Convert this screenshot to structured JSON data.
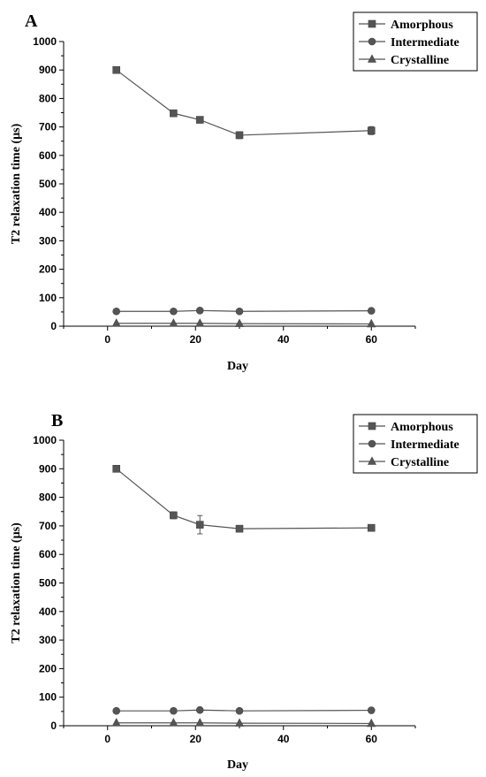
{
  "chart_data": [
    {
      "panel": "A",
      "type": "line",
      "xlabel": "Day",
      "ylabel": "T2 relaxation time (µs)",
      "xlim": [
        -10,
        70
      ],
      "ylim": [
        0,
        1000
      ],
      "xticks": [
        0,
        20,
        40,
        60
      ],
      "yticks": [
        0,
        100,
        200,
        300,
        400,
        500,
        600,
        700,
        800,
        900,
        1000
      ],
      "legend_position": "top-right",
      "series": [
        {
          "name": "Amorphous",
          "marker": "square",
          "x": [
            2,
            15,
            21,
            30,
            60
          ],
          "y": [
            900,
            748,
            725,
            671,
            687
          ],
          "err": [
            5,
            10,
            5,
            12,
            14
          ]
        },
        {
          "name": "Intermediate",
          "marker": "circle",
          "x": [
            2,
            15,
            21,
            30,
            60
          ],
          "y": [
            52,
            52,
            55,
            52,
            54
          ],
          "err": [
            0,
            0,
            0,
            0,
            0
          ]
        },
        {
          "name": "Crystalline",
          "marker": "triangle",
          "x": [
            2,
            15,
            21,
            30,
            60
          ],
          "y": [
            10,
            10,
            10,
            9,
            8
          ],
          "err": [
            0,
            0,
            0,
            0,
            0
          ]
        }
      ]
    },
    {
      "panel": "B",
      "type": "line",
      "xlabel": "Day",
      "ylabel": "T2 relaxation time (µs)",
      "xlim": [
        -10,
        70
      ],
      "ylim": [
        0,
        1000
      ],
      "xticks": [
        0,
        20,
        40,
        60
      ],
      "yticks": [
        0,
        100,
        200,
        300,
        400,
        500,
        600,
        700,
        800,
        900,
        1000
      ],
      "legend_position": "top-right",
      "series": [
        {
          "name": "Amorphous",
          "marker": "square",
          "x": [
            2,
            15,
            21,
            30,
            60
          ],
          "y": [
            900,
            737,
            704,
            690,
            693
          ],
          "err": [
            5,
            12,
            32,
            5,
            10
          ]
        },
        {
          "name": "Intermediate",
          "marker": "circle",
          "x": [
            2,
            15,
            21,
            30,
            60
          ],
          "y": [
            52,
            52,
            55,
            52,
            54
          ],
          "err": [
            0,
            0,
            0,
            0,
            0
          ]
        },
        {
          "name": "Crystalline",
          "marker": "triangle",
          "x": [
            2,
            15,
            21,
            30,
            60
          ],
          "y": [
            10,
            10,
            10,
            9,
            8
          ],
          "err": [
            0,
            0,
            0,
            0,
            0
          ]
        }
      ]
    }
  ]
}
